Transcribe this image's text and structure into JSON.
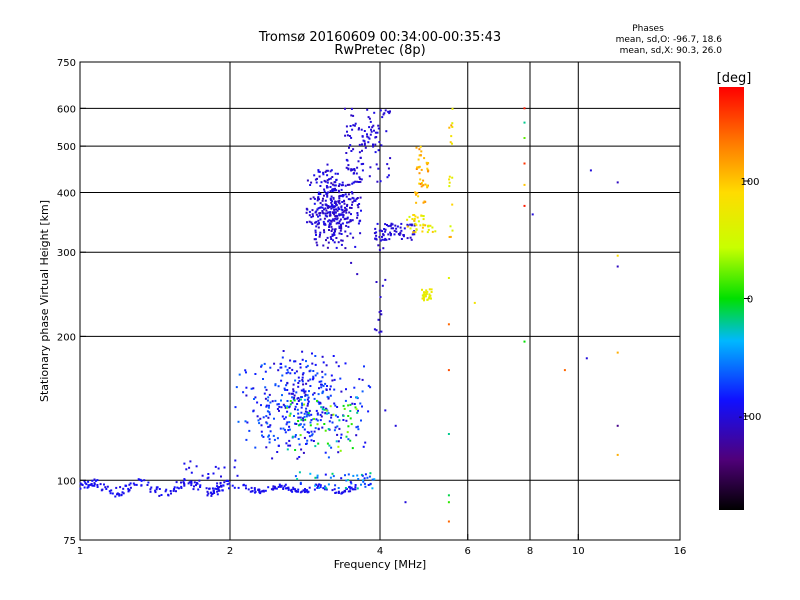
{
  "chart_data": {
    "type": "scatter",
    "title": "Tromsø 20160609 00:34:00-00:35:43",
    "subtitle": "RwPretec (8p)",
    "xlabel": "Frequency [MHz]",
    "ylabel": "Stationary phase Virtual Height [km]",
    "x_scale": "log",
    "y_scale": "log",
    "xlim": [
      1,
      16
    ],
    "ylim": [
      75,
      750
    ],
    "x_ticks": [
      1,
      2,
      4,
      6,
      8,
      10,
      16
    ],
    "y_ticks": [
      75,
      100,
      200,
      300,
      400,
      500,
      600,
      750
    ],
    "grid": true,
    "legend": {
      "title": "Phases",
      "lines": [
        "mean, sd,O: -96.7, 18.6",
        "mean, sd,X:  90.3, 26.0"
      ],
      "placement": "top-right"
    },
    "colorbar": {
      "label": "[deg]",
      "range": [
        -180,
        180
      ],
      "ticks": [
        -100,
        0,
        100
      ],
      "placement": "right"
    },
    "series": [
      {
        "regions": [
          {
            "x": [
              1.0,
              2.0
            ],
            "y": [
              93,
              100
            ],
            "n": 160,
            "phase": [
              -100,
              -85
            ],
            "trace": true
          },
          {
            "x": [
              2.0,
              3.6
            ],
            "y": [
              94,
              98
            ],
            "n": 120,
            "phase": [
              -100,
              -85
            ],
            "trace": true
          },
          {
            "x": [
              2.7,
              3.9
            ],
            "y": [
              96,
              104
            ],
            "n": 50,
            "phase": [
              -95,
              -10
            ]
          },
          {
            "x": [
              1.6,
              2.1
            ],
            "y": [
              98,
              110
            ],
            "n": 25,
            "phase": [
              -100,
              -90
            ]
          },
          {
            "x": [
              2.0,
              3.9
            ],
            "y": [
              110,
              190
            ],
            "n": 380,
            "phase": [
              -110,
              -60
            ],
            "core": true
          },
          {
            "x": [
              2.6,
              3.6
            ],
            "y": [
              115,
              150
            ],
            "n": 60,
            "phase": [
              -40,
              40
            ]
          },
          {
            "x": [
              2.8,
              3.7
            ],
            "y": [
              300,
              460
            ],
            "n": 360,
            "phase": [
              -115,
              -90
            ],
            "core": true
          },
          {
            "x": [
              3.4,
              4.2
            ],
            "y": [
              420,
              600
            ],
            "n": 110,
            "phase": [
              -110,
              -95
            ]
          },
          {
            "x": [
              3.9,
              4.7
            ],
            "y": [
              318,
              345
            ],
            "n": 70,
            "phase": [
              -110,
              -95
            ]
          },
          {
            "x": [
              4.5,
              5.2
            ],
            "y": [
              330,
              360
            ],
            "n": 40,
            "phase": [
              40,
              110
            ]
          },
          {
            "x": [
              4.7,
              5.0
            ],
            "y": [
              380,
              500
            ],
            "n": 45,
            "phase": [
              90,
              130
            ]
          },
          {
            "x": [
              4.85,
              5.1
            ],
            "y": [
              238,
              252
            ],
            "n": 30,
            "phase": [
              60,
              80
            ]
          },
          {
            "x": [
              5.5,
              5.6
            ],
            "y": [
              320,
              600
            ],
            "n": 18,
            "phase": [
              50,
              120
            ]
          },
          {
            "x": [
              3.9,
              4.1
            ],
            "y": [
              200,
              330
            ],
            "n": 18,
            "phase": [
              -110,
              -100
            ]
          }
        ]
      }
    ],
    "points": [
      {
        "x": 3.5,
        "y": 285,
        "phase": -110
      },
      {
        "x": 3.6,
        "y": 270,
        "phase": -110
      },
      {
        "x": 4.1,
        "y": 140,
        "phase": -100
      },
      {
        "x": 4.3,
        "y": 130,
        "phase": -100
      },
      {
        "x": 4.5,
        "y": 90,
        "phase": -100
      },
      {
        "x": 5.5,
        "y": 93,
        "phase": -10
      },
      {
        "x": 5.5,
        "y": 90,
        "phase": 10
      },
      {
        "x": 5.5,
        "y": 82,
        "phase": 140
      },
      {
        "x": 5.5,
        "y": 125,
        "phase": -20
      },
      {
        "x": 5.5,
        "y": 170,
        "phase": 150
      },
      {
        "x": 5.5,
        "y": 212,
        "phase": 140
      },
      {
        "x": 5.5,
        "y": 265,
        "phase": 60
      },
      {
        "x": 6.2,
        "y": 235,
        "phase": 80
      },
      {
        "x": 7.8,
        "y": 195,
        "phase": 0
      },
      {
        "x": 7.8,
        "y": 375,
        "phase": 170
      },
      {
        "x": 7.8,
        "y": 600,
        "phase": 170
      },
      {
        "x": 7.8,
        "y": 560,
        "phase": -20
      },
      {
        "x": 7.8,
        "y": 520,
        "phase": 20
      },
      {
        "x": 7.8,
        "y": 460,
        "phase": 160
      },
      {
        "x": 7.8,
        "y": 415,
        "phase": 100
      },
      {
        "x": 8.1,
        "y": 360,
        "phase": -100
      },
      {
        "x": 9.4,
        "y": 170,
        "phase": 140
      },
      {
        "x": 10.4,
        "y": 180,
        "phase": -100
      },
      {
        "x": 10.6,
        "y": 445,
        "phase": -100
      },
      {
        "x": 12.0,
        "y": 420,
        "phase": -110
      },
      {
        "x": 12.0,
        "y": 280,
        "phase": -110
      },
      {
        "x": 12.0,
        "y": 295,
        "phase": 90
      },
      {
        "x": 12.0,
        "y": 185,
        "phase": 110
      },
      {
        "x": 12.0,
        "y": 130,
        "phase": -130
      },
      {
        "x": 12.0,
        "y": 113,
        "phase": 110
      }
    ]
  }
}
